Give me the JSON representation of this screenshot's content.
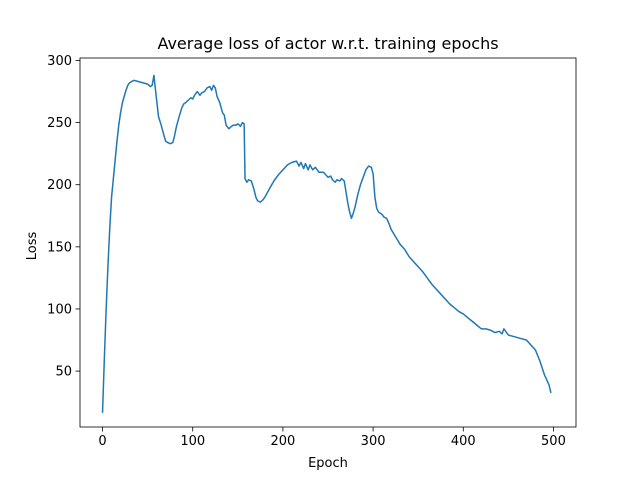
{
  "chart_data": {
    "type": "line",
    "title": "Average loss of actor w.r.t. training epochs",
    "xlabel": "Epoch",
    "ylabel": "Loss",
    "xlim": [
      -25,
      525
    ],
    "ylim": [
      5,
      302
    ],
    "xticks": [
      0,
      100,
      200,
      300,
      400,
      500
    ],
    "yticks": [
      50,
      100,
      150,
      200,
      250,
      300
    ],
    "grid": false,
    "line_color": "#1f77b4",
    "series": [
      {
        "x": [
          0,
          2,
          4,
          6,
          8,
          10,
          12,
          14,
          16,
          18,
          20,
          22,
          24,
          26,
          28,
          30,
          32,
          35,
          40,
          45,
          50,
          53,
          55,
          57,
          58,
          60,
          62,
          65,
          68,
          70,
          72,
          75,
          78,
          80,
          82,
          85,
          88,
          90,
          92,
          95,
          98,
          100,
          102,
          105,
          108,
          110,
          113,
          116,
          119,
          121,
          123,
          125,
          127,
          130,
          133,
          135,
          137,
          140,
          143,
          145,
          148,
          150,
          153,
          155,
          157,
          158,
          160,
          162,
          165,
          168,
          170,
          172,
          175,
          178,
          180,
          183,
          186,
          190,
          195,
          200,
          205,
          210,
          215,
          218,
          220,
          223,
          225,
          228,
          230,
          233,
          236,
          240,
          245,
          250,
          253,
          255,
          258,
          260,
          263,
          265,
          268,
          270,
          272,
          274,
          276,
          278,
          280,
          283,
          286,
          289,
          292,
          295,
          298,
          300,
          302,
          304,
          306,
          308,
          310,
          312,
          315,
          318,
          320,
          325,
          330,
          335,
          340,
          345,
          350,
          355,
          360,
          365,
          370,
          375,
          380,
          385,
          390,
          395,
          400,
          405,
          410,
          415,
          420,
          425,
          430,
          435,
          440,
          443,
          445,
          450,
          455,
          460,
          465,
          470,
          475,
          480,
          485,
          490,
          495,
          497
        ],
        "y": [
          17,
          60,
          100,
          135,
          165,
          190,
          205,
          220,
          235,
          248,
          258,
          266,
          271,
          276,
          280,
          282,
          283,
          284,
          283,
          282,
          281,
          279,
          280,
          288,
          281,
          268,
          255,
          248,
          240,
          235,
          234,
          233,
          234,
          240,
          247,
          255,
          262,
          265,
          266,
          268,
          270,
          269,
          272,
          275,
          272,
          274,
          275,
          278,
          279,
          276,
          280,
          278,
          271,
          266,
          258,
          256,
          248,
          245,
          247,
          248,
          248,
          249,
          247,
          250,
          249,
          205,
          202,
          204,
          203,
          196,
          190,
          187,
          186,
          188,
          190,
          194,
          198,
          203,
          208,
          212,
          216,
          218,
          219,
          215,
          218,
          213,
          217,
          212,
          216,
          212,
          214,
          210,
          210,
          206,
          207,
          204,
          202,
          204,
          203,
          205,
          203,
          194,
          185,
          178,
          173,
          177,
          182,
          192,
          200,
          206,
          212,
          215,
          214,
          209,
          190,
          181,
          178,
          177,
          176,
          174,
          173,
          168,
          164,
          158,
          152,
          148,
          142,
          138,
          134,
          130,
          125,
          120,
          116,
          112,
          108,
          104,
          101,
          98,
          96,
          93,
          90,
          87,
          84,
          84,
          83,
          81,
          82,
          80,
          84,
          79,
          78,
          77,
          76,
          75,
          71,
          67,
          58,
          47,
          39,
          33
        ]
      }
    ]
  }
}
